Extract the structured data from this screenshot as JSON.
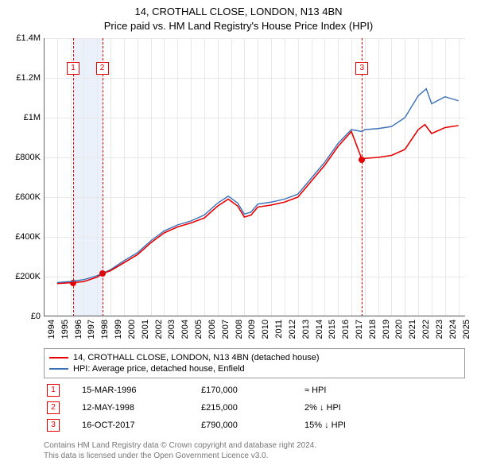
{
  "title_line1": "14, CROTHALL CLOSE, LONDON, N13 4BN",
  "title_line2": "Price paid vs. HM Land Registry's House Price Index (HPI)",
  "chart": {
    "type": "line",
    "x_min": 1994,
    "x_max": 2025.5,
    "y_min": 0,
    "y_max": 1400000,
    "y_ticks": [
      0,
      200000,
      400000,
      600000,
      800000,
      1000000,
      1200000,
      1400000
    ],
    "y_tick_labels": [
      "£0",
      "£200K",
      "£400K",
      "£600K",
      "£800K",
      "£1M",
      "£1.2M",
      "£1.4M"
    ],
    "x_ticks": [
      1994,
      1995,
      1996,
      1997,
      1998,
      1999,
      2000,
      2001,
      2002,
      2003,
      2004,
      2005,
      2006,
      2007,
      2008,
      2009,
      2010,
      2011,
      2012,
      2013,
      2014,
      2015,
      2016,
      2017,
      2018,
      2019,
      2020,
      2021,
      2022,
      2023,
      2024,
      2025
    ],
    "background_color": "#ffffff",
    "grid_color": "#e8e8e8",
    "axis_color": "#666666",
    "tick_fontsize": 11,
    "series": {
      "price_paid": {
        "label": "14, CROTHALL CLOSE, LONDON, N13 4BN (detached house)",
        "color": "#e60000",
        "line_width": 1.6,
        "data": [
          [
            1995.0,
            165000
          ],
          [
            1996.2,
            170000
          ],
          [
            1997.0,
            175000
          ],
          [
            1998.0,
            198000
          ],
          [
            1998.37,
            215000
          ],
          [
            1999.0,
            230000
          ],
          [
            2000.0,
            270000
          ],
          [
            2001.0,
            310000
          ],
          [
            2002.0,
            370000
          ],
          [
            2003.0,
            420000
          ],
          [
            2004.0,
            450000
          ],
          [
            2005.0,
            470000
          ],
          [
            2006.0,
            495000
          ],
          [
            2007.0,
            555000
          ],
          [
            2007.8,
            590000
          ],
          [
            2008.5,
            555000
          ],
          [
            2009.0,
            500000
          ],
          [
            2009.5,
            510000
          ],
          [
            2010.0,
            550000
          ],
          [
            2011.0,
            560000
          ],
          [
            2012.0,
            575000
          ],
          [
            2013.0,
            600000
          ],
          [
            2014.0,
            680000
          ],
          [
            2015.0,
            760000
          ],
          [
            2016.0,
            855000
          ],
          [
            2017.0,
            930000
          ],
          [
            2017.79,
            790000
          ],
          [
            2018.0,
            795000
          ],
          [
            2019.0,
            800000
          ],
          [
            2020.0,
            810000
          ],
          [
            2021.0,
            840000
          ],
          [
            2022.0,
            940000
          ],
          [
            2022.5,
            965000
          ],
          [
            2023.0,
            920000
          ],
          [
            2024.0,
            950000
          ],
          [
            2025.0,
            960000
          ]
        ]
      },
      "hpi": {
        "label": "HPI: Average price, detached house, Enfield",
        "color": "#3a6fb7",
        "line_width": 1.4,
        "data": [
          [
            1995.0,
            170000
          ],
          [
            1996.0,
            175000
          ],
          [
            1997.0,
            185000
          ],
          [
            1998.0,
            205000
          ],
          [
            1999.0,
            235000
          ],
          [
            2000.0,
            280000
          ],
          [
            2001.0,
            320000
          ],
          [
            2002.0,
            380000
          ],
          [
            2003.0,
            430000
          ],
          [
            2004.0,
            460000
          ],
          [
            2005.0,
            480000
          ],
          [
            2006.0,
            510000
          ],
          [
            2007.0,
            570000
          ],
          [
            2007.8,
            605000
          ],
          [
            2008.5,
            570000
          ],
          [
            2009.0,
            515000
          ],
          [
            2009.5,
            525000
          ],
          [
            2010.0,
            565000
          ],
          [
            2011.0,
            575000
          ],
          [
            2012.0,
            590000
          ],
          [
            2013.0,
            615000
          ],
          [
            2014.0,
            695000
          ],
          [
            2015.0,
            775000
          ],
          [
            2016.0,
            870000
          ],
          [
            2017.0,
            940000
          ],
          [
            2017.79,
            930000
          ],
          [
            2018.0,
            940000
          ],
          [
            2019.0,
            945000
          ],
          [
            2020.0,
            955000
          ],
          [
            2021.0,
            1000000
          ],
          [
            2022.0,
            1110000
          ],
          [
            2022.6,
            1145000
          ],
          [
            2023.0,
            1070000
          ],
          [
            2024.0,
            1105000
          ],
          [
            2025.0,
            1085000
          ]
        ]
      }
    },
    "sale_band": {
      "x_start": 1996.2,
      "x_end": 1998.37,
      "color": "#eaf1fa"
    },
    "sale_markers": [
      {
        "n": "1",
        "x": 1996.2,
        "price": 170000,
        "color": "#e60000"
      },
      {
        "n": "2",
        "x": 1998.37,
        "price": 215000,
        "color": "#e60000"
      },
      {
        "n": "3",
        "x": 2017.79,
        "price": 790000,
        "color": "#e60000"
      }
    ],
    "sale_box_top_y": 1280000
  },
  "legend": {
    "border_color": "#999999",
    "items": [
      {
        "color": "#e60000",
        "text": "14, CROTHALL CLOSE, LONDON, N13 4BN (detached house)"
      },
      {
        "color": "#3a6fb7",
        "text": "HPI: Average price, detached house, Enfield"
      }
    ]
  },
  "sales_table": {
    "rows": [
      {
        "n": "1",
        "color": "#e60000",
        "date": "15-MAR-1996",
        "price": "£170,000",
        "hpi_delta": "≈ HPI"
      },
      {
        "n": "2",
        "color": "#e60000",
        "date": "12-MAY-1998",
        "price": "£215,000",
        "hpi_delta": "2% ↓ HPI"
      },
      {
        "n": "3",
        "color": "#e60000",
        "date": "16-OCT-2017",
        "price": "£790,000",
        "hpi_delta": "15% ↓ HPI"
      }
    ]
  },
  "footer": {
    "line1": "Contains HM Land Registry data © Crown copyright and database right 2024.",
    "line2": "This data is licensed under the Open Government Licence v3.0.",
    "color": "#777777"
  }
}
